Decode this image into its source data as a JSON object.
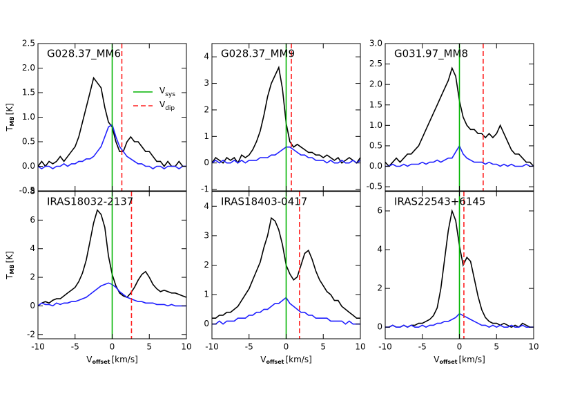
{
  "chart_data": [
    {
      "type": "line",
      "title": "G028.37_MM6",
      "x": [
        -10,
        -9.5,
        -9,
        -8.5,
        -8,
        -7.5,
        -7,
        -6.5,
        -6,
        -5.5,
        -5,
        -4.5,
        -4,
        -3.5,
        -3,
        -2.5,
        -2,
        -1.5,
        -1,
        -0.5,
        0,
        0.5,
        1,
        1.5,
        2,
        2.5,
        3,
        3.5,
        4,
        4.5,
        5,
        5.5,
        6,
        6.5,
        7,
        7.5,
        8,
        8.5,
        9,
        9.5,
        10
      ],
      "series": [
        {
          "color": "#000000",
          "values": [
            0.0,
            0.1,
            0.0,
            0.1,
            0.05,
            0.1,
            0.2,
            0.1,
            0.2,
            0.3,
            0.4,
            0.6,
            0.9,
            1.2,
            1.5,
            1.8,
            1.7,
            1.6,
            1.2,
            0.9,
            0.8,
            0.5,
            0.3,
            0.3,
            0.5,
            0.6,
            0.5,
            0.5,
            0.4,
            0.3,
            0.3,
            0.2,
            0.1,
            0.1,
            0.0,
            0.1,
            0.0,
            0.0,
            0.1,
            0.0,
            0.0
          ]
        },
        {
          "color": "#1f1fff",
          "values": [
            0.0,
            -0.05,
            0.0,
            0.0,
            -0.05,
            0.0,
            0.0,
            0.05,
            0.0,
            0.05,
            0.05,
            0.1,
            0.1,
            0.15,
            0.15,
            0.2,
            0.3,
            0.4,
            0.6,
            0.8,
            0.85,
            0.6,
            0.4,
            0.3,
            0.2,
            0.15,
            0.1,
            0.05,
            0.05,
            0.0,
            0.0,
            -0.05,
            0.0,
            0.0,
            -0.05,
            0.0,
            0.0,
            0.0,
            -0.05,
            0.0,
            0.0
          ]
        }
      ],
      "vlines": [
        {
          "value": 0,
          "color": "#00b400",
          "dash": false
        },
        {
          "value": 1.3,
          "color": "#ff2020",
          "dash": true
        }
      ],
      "legend": [
        {
          "label": "V",
          "sub": "sys"
        },
        {
          "label": "V",
          "sub": "dip"
        }
      ],
      "ylabel": {
        "text": "T",
        "sub": "MB",
        "unit": "[K]"
      },
      "xlim": [
        -10,
        10
      ],
      "xticks": [
        -10,
        -5,
        0,
        5,
        10
      ],
      "ylim": [
        -0.5,
        2.5
      ],
      "yticks": [
        -0.5,
        {
          "value": 0,
          "label": "0.0"
        },
        0.5,
        {
          "value": 1,
          "label": "1.0"
        },
        1.5,
        {
          "value": 2,
          "label": "2.0"
        },
        2.5
      ]
    },
    {
      "type": "line",
      "title": "G028.37_MM9",
      "x": [
        -10,
        -9.5,
        -9,
        -8.5,
        -8,
        -7.5,
        -7,
        -6.5,
        -6,
        -5.5,
        -5,
        -4.5,
        -4,
        -3.5,
        -3,
        -2.5,
        -2,
        -1.5,
        -1,
        -0.5,
        0,
        0.5,
        1,
        1.5,
        2,
        2.5,
        3,
        3.5,
        4,
        4.5,
        5,
        5.5,
        6,
        6.5,
        7,
        7.5,
        8,
        8.5,
        9,
        9.5,
        10
      ],
      "series": [
        {
          "color": "#000000",
          "values": [
            0.0,
            0.2,
            0.1,
            0.0,
            0.2,
            0.1,
            0.2,
            0.0,
            0.3,
            0.2,
            0.3,
            0.5,
            0.8,
            1.2,
            1.8,
            2.5,
            3.0,
            3.3,
            3.6,
            2.8,
            1.5,
            0.8,
            0.6,
            0.7,
            0.6,
            0.5,
            0.4,
            0.4,
            0.3,
            0.3,
            0.2,
            0.3,
            0.2,
            0.1,
            0.2,
            0.0,
            0.1,
            0.2,
            0.1,
            0.0,
            0.2
          ]
        },
        {
          "color": "#1f1fff",
          "values": [
            0.0,
            0.1,
            0.0,
            0.1,
            0.0,
            0.0,
            0.1,
            0.0,
            0.1,
            0.0,
            0.1,
            0.1,
            0.1,
            0.2,
            0.2,
            0.2,
            0.3,
            0.3,
            0.4,
            0.5,
            0.6,
            0.6,
            0.5,
            0.4,
            0.3,
            0.3,
            0.2,
            0.2,
            0.1,
            0.1,
            0.1,
            0.0,
            0.1,
            0.0,
            0.0,
            0.1,
            0.0,
            0.0,
            0.1,
            0.0,
            0.1
          ]
        }
      ],
      "vlines": [
        {
          "value": 0,
          "color": "#00b400",
          "dash": false
        },
        {
          "value": 0.7,
          "color": "#ff2020",
          "dash": true
        }
      ],
      "xlim": [
        -10,
        10
      ],
      "xticks": [
        -10,
        -5,
        0,
        5,
        10
      ],
      "ylim": [
        -1.05,
        4.5
      ],
      "yticks": [
        -1,
        0,
        1,
        2,
        3,
        4
      ]
    },
    {
      "type": "line",
      "title": "G031.97_MM8",
      "x": [
        -10,
        -9.5,
        -9,
        -8.5,
        -8,
        -7.5,
        -7,
        -6.5,
        -6,
        -5.5,
        -5,
        -4.5,
        -4,
        -3.5,
        -3,
        -2.5,
        -2,
        -1.5,
        -1,
        -0.5,
        0,
        0.5,
        1,
        1.5,
        2,
        2.5,
        3,
        3.5,
        4,
        4.5,
        5,
        5.5,
        6,
        6.5,
        7,
        7.5,
        8,
        8.5,
        9,
        9.5,
        10
      ],
      "series": [
        {
          "color": "#000000",
          "values": [
            0.1,
            0.0,
            0.1,
            0.2,
            0.1,
            0.2,
            0.3,
            0.3,
            0.4,
            0.5,
            0.7,
            0.9,
            1.1,
            1.3,
            1.5,
            1.7,
            1.9,
            2.1,
            2.4,
            2.2,
            1.6,
            1.2,
            1.0,
            0.9,
            0.9,
            0.8,
            0.8,
            0.7,
            0.8,
            0.7,
            0.8,
            1.0,
            0.8,
            0.6,
            0.4,
            0.3,
            0.3,
            0.2,
            0.1,
            0.1,
            0.0
          ]
        },
        {
          "color": "#1f1fff",
          "values": [
            0.0,
            0.0,
            0.05,
            0.0,
            0.0,
            0.05,
            0.0,
            0.05,
            0.05,
            0.05,
            0.1,
            0.05,
            0.1,
            0.1,
            0.15,
            0.1,
            0.15,
            0.2,
            0.2,
            0.35,
            0.5,
            0.3,
            0.2,
            0.15,
            0.1,
            0.1,
            0.1,
            0.05,
            0.1,
            0.05,
            0.05,
            0.0,
            0.05,
            0.0,
            0.05,
            0.0,
            0.0,
            0.0,
            0.05,
            0.0,
            0.0
          ]
        }
      ],
      "vlines": [
        {
          "value": 0,
          "color": "#00b400",
          "dash": false
        },
        {
          "value": 3.2,
          "color": "#ff2020",
          "dash": true
        }
      ],
      "xlim": [
        -10,
        10
      ],
      "xticks": [
        -10,
        -5,
        0,
        5,
        10
      ],
      "ylim": [
        -0.6,
        3.0
      ],
      "yticks": [
        -0.5,
        {
          "value": 0,
          "label": "0.0"
        },
        0.5,
        {
          "value": 1,
          "label": "1.0"
        },
        1.5,
        {
          "value": 2,
          "label": "2.0"
        },
        2.5,
        {
          "value": 3,
          "label": "3.0"
        }
      ]
    },
    {
      "type": "line",
      "title": "IRAS18032-2137",
      "x": [
        -10,
        -9.5,
        -9,
        -8.5,
        -8,
        -7.5,
        -7,
        -6.5,
        -6,
        -5.5,
        -5,
        -4.5,
        -4,
        -3.5,
        -3,
        -2.5,
        -2,
        -1.5,
        -1,
        -0.5,
        0,
        0.5,
        1,
        1.5,
        2,
        2.5,
        3,
        3.5,
        4,
        4.5,
        5,
        5.5,
        6,
        6.5,
        7,
        7.5,
        8,
        8.5,
        9,
        9.5,
        10
      ],
      "series": [
        {
          "color": "#000000",
          "values": [
            0.0,
            0.2,
            0.3,
            0.2,
            0.4,
            0.5,
            0.5,
            0.7,
            0.9,
            1.1,
            1.3,
            1.7,
            2.3,
            3.2,
            4.5,
            5.8,
            6.7,
            6.4,
            5.5,
            3.5,
            2.2,
            1.4,
            0.9,
            0.7,
            0.6,
            0.9,
            1.3,
            1.8,
            2.2,
            2.4,
            2.0,
            1.5,
            1.2,
            1.0,
            1.1,
            1.0,
            0.9,
            0.9,
            0.8,
            0.7,
            0.6
          ]
        },
        {
          "color": "#1f1fff",
          "values": [
            0.0,
            0.2,
            0.1,
            0.1,
            0.0,
            0.2,
            0.1,
            0.2,
            0.2,
            0.3,
            0.3,
            0.4,
            0.5,
            0.6,
            0.8,
            1.0,
            1.2,
            1.4,
            1.5,
            1.6,
            1.5,
            1.3,
            1.0,
            0.8,
            0.6,
            0.5,
            0.4,
            0.3,
            0.3,
            0.2,
            0.2,
            0.2,
            0.1,
            0.1,
            0.1,
            0.0,
            0.1,
            0.0,
            0.0,
            0.0,
            0.0
          ]
        }
      ],
      "vlines": [
        {
          "value": 0,
          "color": "#00b400",
          "dash": false
        },
        {
          "value": 2.6,
          "color": "#ff2020",
          "dash": true
        }
      ],
      "ylabel": {
        "text": "T",
        "sub": "MB",
        "unit": "[K]"
      },
      "xlabel": {
        "text": "V",
        "sub": "offset",
        "unit": "[km/s]"
      },
      "xlim": [
        -10,
        10
      ],
      "xticks": [
        -10,
        -5,
        0,
        5,
        10
      ],
      "ylim": [
        -2.3,
        8
      ],
      "yticks": [
        -2,
        0,
        2,
        4,
        6,
        8
      ]
    },
    {
      "type": "line",
      "title": "IRAS18403-0417",
      "x": [
        -10,
        -9.5,
        -9,
        -8.5,
        -8,
        -7.5,
        -7,
        -6.5,
        -6,
        -5.5,
        -5,
        -4.5,
        -4,
        -3.5,
        -3,
        -2.5,
        -2,
        -1.5,
        -1,
        -0.5,
        0,
        0.5,
        1,
        1.5,
        2,
        2.5,
        3,
        3.5,
        4,
        4.5,
        5,
        5.5,
        6,
        6.5,
        7,
        7.5,
        8,
        8.5,
        9,
        9.5,
        10
      ],
      "series": [
        {
          "color": "#000000",
          "values": [
            0.2,
            0.2,
            0.3,
            0.3,
            0.4,
            0.4,
            0.5,
            0.6,
            0.8,
            1.0,
            1.2,
            1.5,
            1.8,
            2.1,
            2.6,
            3.0,
            3.6,
            3.5,
            3.2,
            2.7,
            2.0,
            1.7,
            1.5,
            1.6,
            2.0,
            2.4,
            2.5,
            2.2,
            1.8,
            1.5,
            1.3,
            1.1,
            1.0,
            0.8,
            0.8,
            0.6,
            0.5,
            0.4,
            0.3,
            0.2,
            0.2
          ]
        },
        {
          "color": "#1f1fff",
          "values": [
            0.0,
            0.0,
            0.1,
            0.0,
            0.1,
            0.1,
            0.1,
            0.2,
            0.2,
            0.2,
            0.3,
            0.3,
            0.4,
            0.4,
            0.5,
            0.5,
            0.6,
            0.7,
            0.7,
            0.8,
            0.9,
            0.7,
            0.6,
            0.5,
            0.4,
            0.4,
            0.3,
            0.3,
            0.2,
            0.2,
            0.2,
            0.2,
            0.1,
            0.1,
            0.1,
            0.1,
            0.0,
            0.1,
            0.0,
            0.0,
            0.0
          ]
        }
      ],
      "vlines": [
        {
          "value": 0,
          "color": "#00b400",
          "dash": false
        },
        {
          "value": 1.8,
          "color": "#ff2020",
          "dash": true
        }
      ],
      "xlabel": {
        "text": "V",
        "sub": "offset",
        "unit": "[km/s]"
      },
      "xlim": [
        -10,
        10
      ],
      "xticks": [
        -10,
        -5,
        0,
        5,
        10
      ],
      "ylim": [
        -0.5,
        4.5
      ],
      "yticks": [
        0,
        1,
        2,
        3,
        4
      ]
    },
    {
      "type": "line",
      "title": "IRAS22543+6145",
      "x": [
        -10,
        -9.5,
        -9,
        -8.5,
        -8,
        -7.5,
        -7,
        -6.5,
        -6,
        -5.5,
        -5,
        -4.5,
        -4,
        -3.5,
        -3,
        -2.5,
        -2,
        -1.5,
        -1,
        -0.5,
        0,
        0.5,
        1,
        1.5,
        2,
        2.5,
        3,
        3.5,
        4,
        4.5,
        5,
        5.5,
        6,
        6.5,
        7,
        7.5,
        8,
        8.5,
        9,
        9.5,
        10
      ],
      "series": [
        {
          "color": "#000000",
          "values": [
            0.0,
            0.0,
            0.1,
            0.0,
            0.0,
            0.1,
            0.0,
            0.1,
            0.1,
            0.2,
            0.2,
            0.3,
            0.4,
            0.6,
            1.0,
            2.0,
            3.5,
            5.0,
            6.0,
            5.5,
            4.2,
            3.2,
            3.6,
            3.4,
            2.5,
            1.6,
            0.9,
            0.5,
            0.3,
            0.2,
            0.2,
            0.1,
            0.2,
            0.1,
            0.0,
            0.1,
            0.0,
            0.2,
            0.1,
            0.0,
            0.0
          ]
        },
        {
          "color": "#1f1fff",
          "values": [
            0.0,
            0.0,
            0.1,
            0.0,
            0.0,
            0.1,
            0.0,
            0.1,
            0.0,
            0.0,
            0.1,
            0.0,
            0.1,
            0.1,
            0.2,
            0.2,
            0.3,
            0.3,
            0.4,
            0.5,
            0.7,
            0.6,
            0.5,
            0.4,
            0.3,
            0.2,
            0.1,
            0.1,
            0.0,
            0.1,
            0.0,
            0.1,
            0.0,
            0.0,
            0.1,
            0.0,
            0.0,
            0.1,
            0.0,
            0.0,
            0.0
          ]
        }
      ],
      "vlines": [
        {
          "value": 0,
          "color": "#00b400",
          "dash": false
        },
        {
          "value": 0.6,
          "color": "#ff2020",
          "dash": true
        }
      ],
      "xlabel": {
        "text": "V",
        "sub": "offset",
        "unit": "[km/s]"
      },
      "xlim": [
        -10,
        10
      ],
      "xticks": [
        -10,
        -5,
        0,
        5,
        10
      ],
      "ylim": [
        -0.6,
        7
      ],
      "yticks": [
        0,
        2,
        4,
        6
      ]
    }
  ]
}
